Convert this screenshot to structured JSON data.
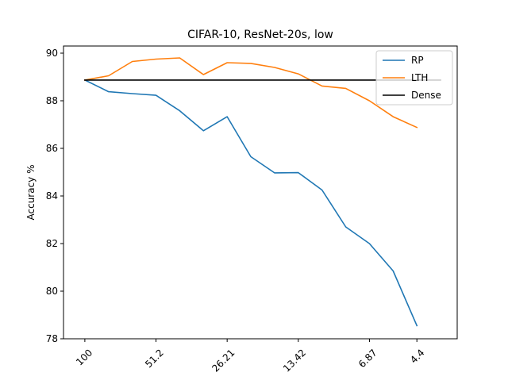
{
  "chart_data": {
    "type": "line",
    "title": "CIFAR-10, ResNet-20s, low",
    "xlabel": "",
    "ylabel": "Accuracy %",
    "x_tick_labels": [
      "100",
      "51.2",
      "26.21",
      "13.42",
      "6.87",
      "4.4"
    ],
    "x_tick_positions": [
      0,
      3,
      6,
      9,
      12,
      14
    ],
    "xlim": [
      -0.9,
      15.7
    ],
    "ylim": [
      78,
      90.3
    ],
    "y_ticks": [
      78,
      80,
      82,
      84,
      86,
      88,
      90
    ],
    "grid": false,
    "legend_position": "top-right",
    "series": [
      {
        "name": "RP",
        "color": "#1f77b4",
        "x": [
          0,
          1,
          2,
          3,
          4,
          5,
          6,
          7,
          8,
          9,
          10,
          11,
          12,
          13,
          14
        ],
        "values": [
          88.87,
          88.38,
          88.3,
          88.23,
          87.58,
          86.74,
          87.33,
          85.65,
          84.97,
          84.98,
          84.25,
          82.7,
          82.0,
          80.85,
          78.55
        ]
      },
      {
        "name": "LTH",
        "color": "#ff7f0e",
        "x": [
          0,
          1,
          2,
          3,
          4,
          5,
          6,
          7,
          8,
          9,
          10,
          11,
          12,
          13,
          14
        ],
        "values": [
          88.87,
          89.05,
          89.65,
          89.75,
          89.8,
          89.1,
          89.6,
          89.57,
          89.4,
          89.13,
          88.62,
          88.52,
          88.0,
          87.33,
          86.88
        ]
      },
      {
        "name": "Dense",
        "color": "#000000",
        "x": [
          0,
          15
        ],
        "values": [
          88.87,
          88.87
        ]
      }
    ]
  }
}
